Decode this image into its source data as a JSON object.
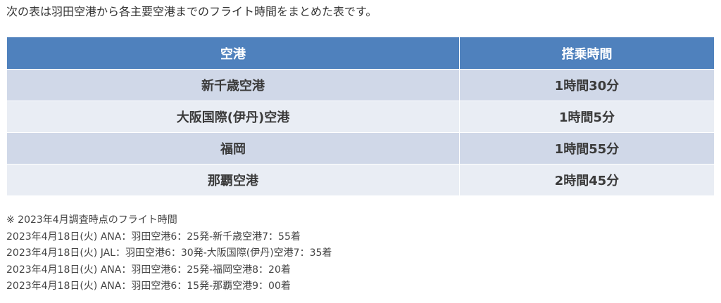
{
  "intro": "次の表は羽田空港から各主要空港までのフライト時間をまとめた表です。",
  "table": {
    "headers": [
      "空港",
      "搭乗時間"
    ],
    "rows": [
      {
        "airport": "新千歳空港",
        "time": "1時間30分"
      },
      {
        "airport": "大阪国際(伊丹)空港",
        "time": "1時間5分"
      },
      {
        "airport": "福岡",
        "time": "1時間55分"
      },
      {
        "airport": "那覇空港",
        "time": "2時間45分"
      }
    ]
  },
  "notes": [
    "※ 2023年4月調査時点のフライト時間",
    "2023年4月18日(火) ANA：羽田空港6：25発-新千歳空港7：55着",
    "2023年4月18日(火) JAL：羽田空港6：30発-大阪国際(伊丹)空港7：35着",
    "2023年4月18日(火) ANA：羽田空港6：25発-福岡空港8：20着",
    "2023年4月18日(火) ANA：羽田空港6：15発-那覇空港9：00着"
  ],
  "colors": {
    "header_bg": "#4f81bd",
    "row_odd_bg": "#d0d8e8",
    "row_even_bg": "#e9edf4"
  }
}
